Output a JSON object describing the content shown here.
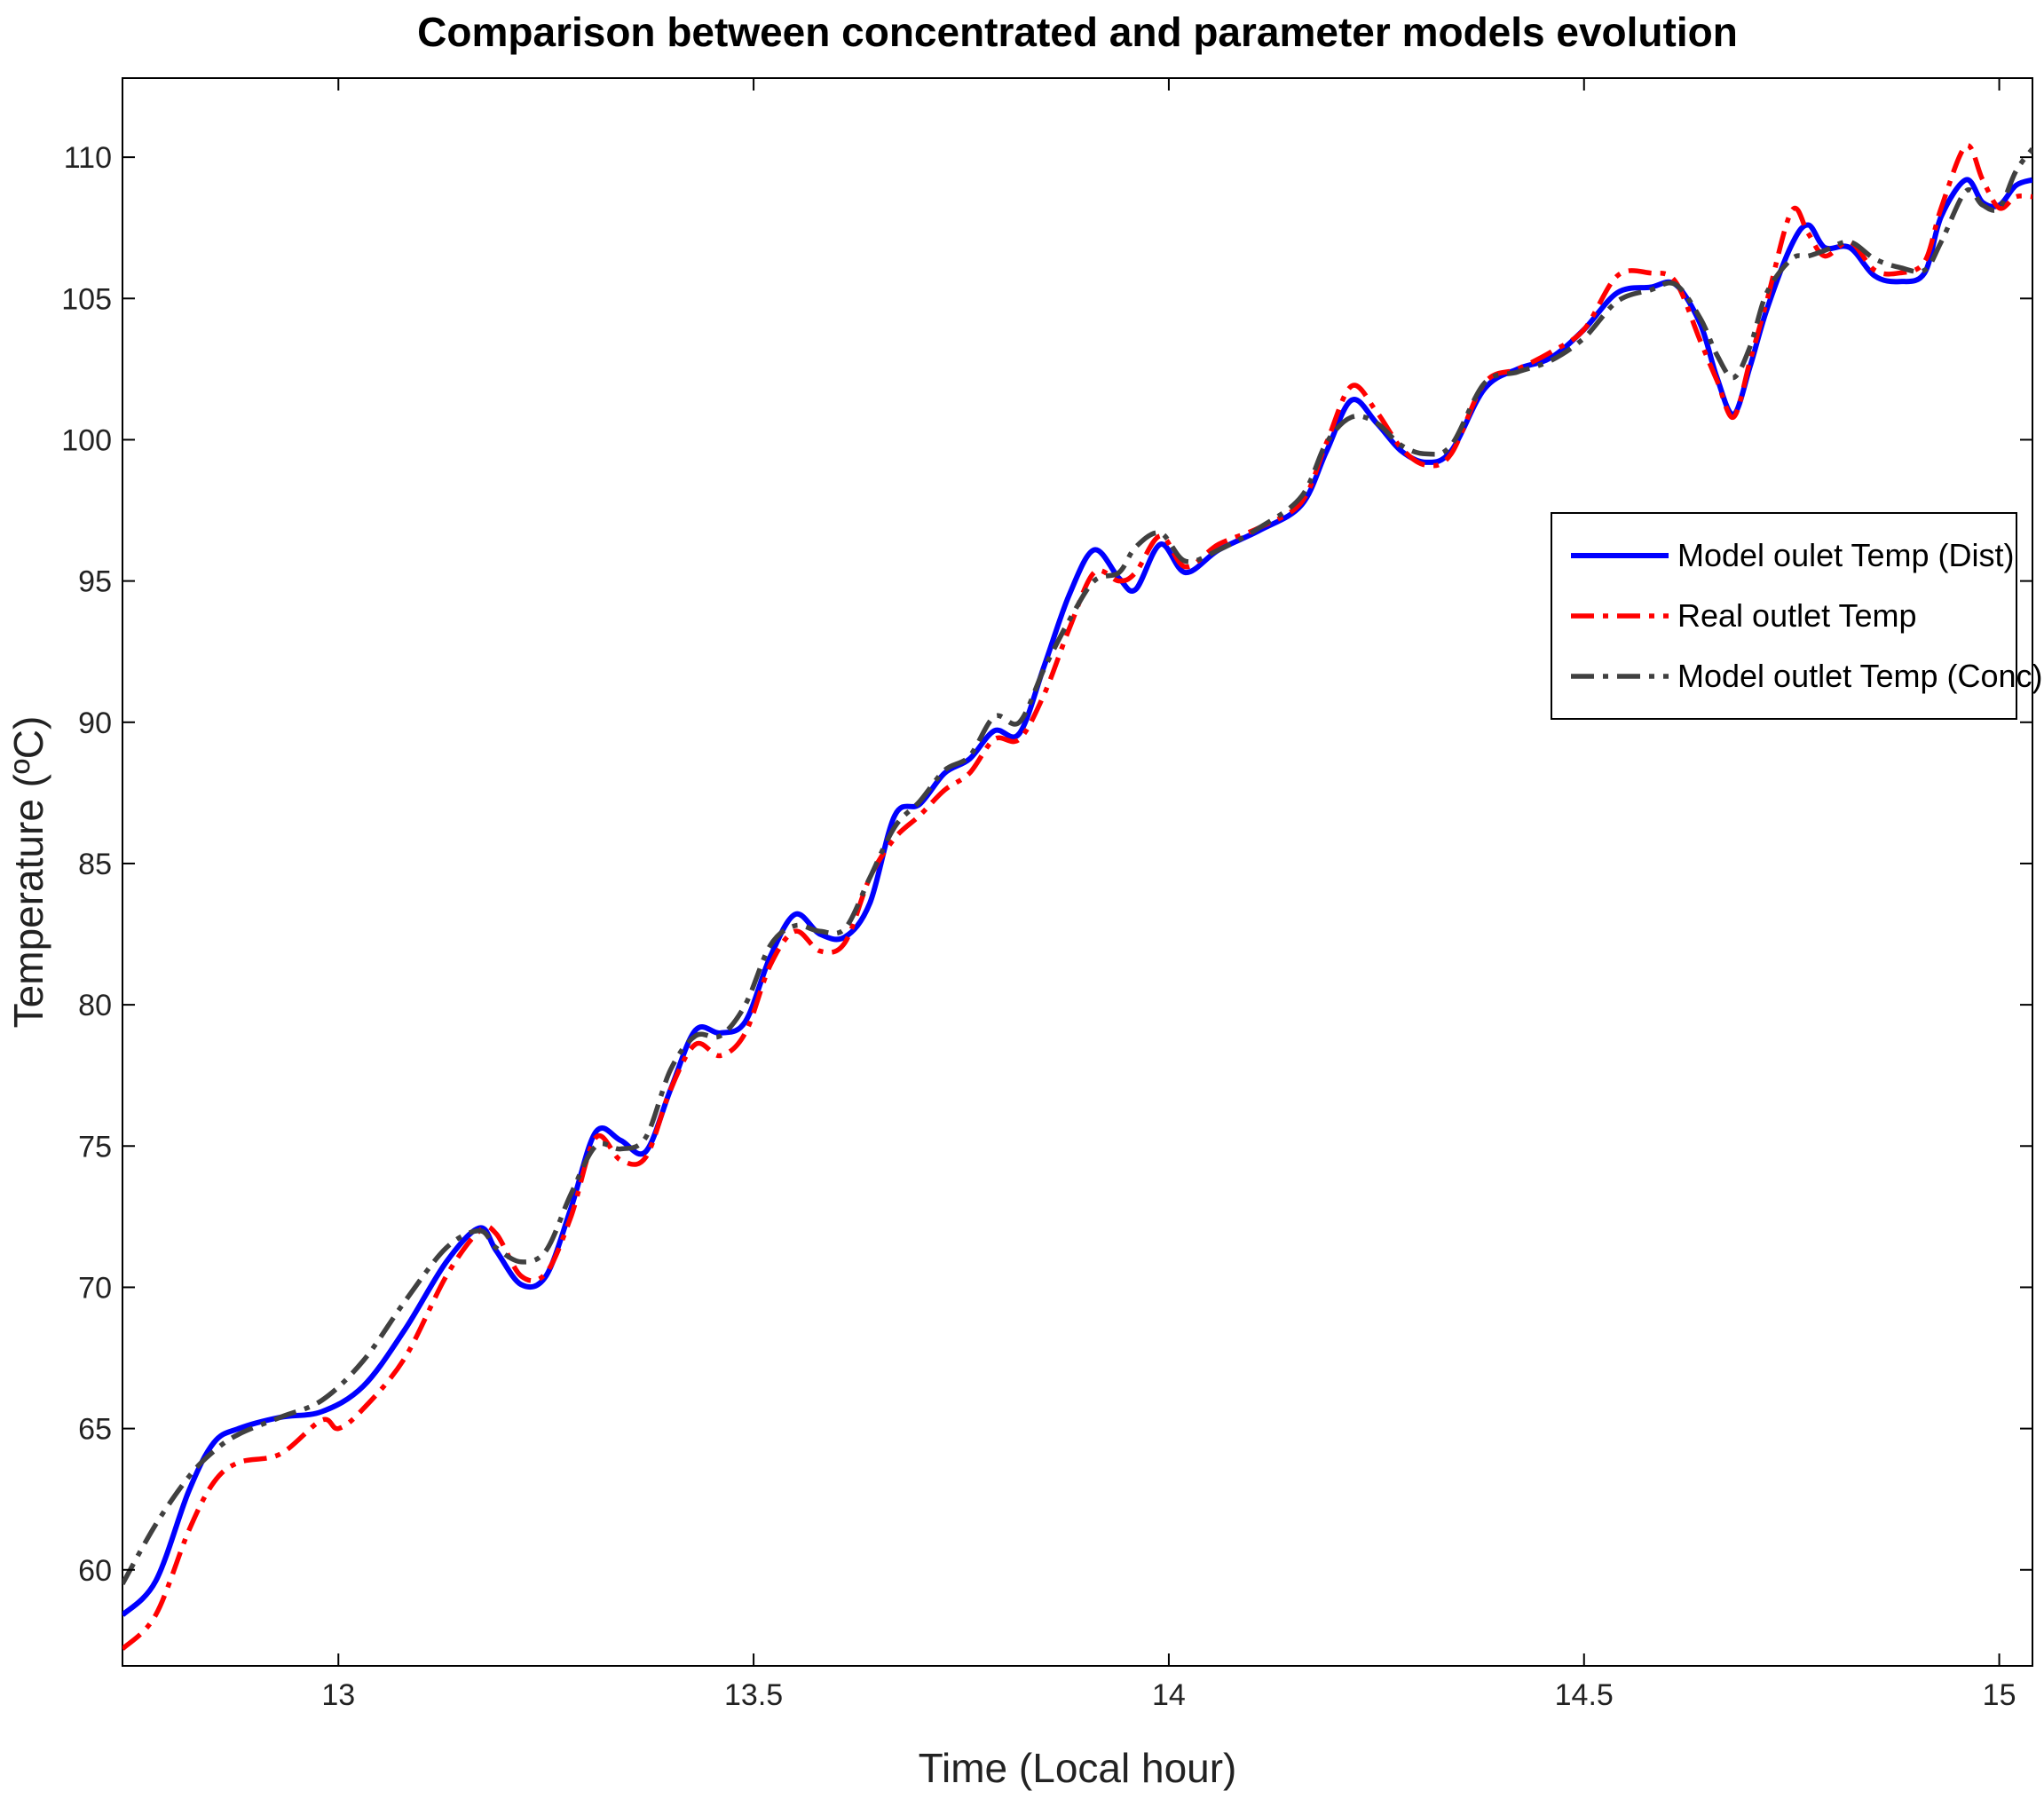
{
  "chart_data": {
    "type": "line",
    "title": "Comparison between concentrated and parameter models evolution",
    "xlabel": "Time (Local hour)",
    "ylabel": "Temperature (ºC)",
    "xlim": [
      12.74,
      15.04
    ],
    "ylim": [
      56.6,
      112.8
    ],
    "xticks": [
      13,
      13.5,
      14,
      14.5,
      15
    ],
    "xtick_labels": [
      "13",
      "13.5",
      "14",
      "14.5",
      "15"
    ],
    "yticks": [
      60,
      65,
      70,
      75,
      80,
      85,
      90,
      95,
      100,
      105,
      110
    ],
    "ytick_labels": [
      "60",
      "65",
      "70",
      "75",
      "80",
      "85",
      "90",
      "95",
      "100",
      "105",
      "110"
    ],
    "grid": false,
    "legend_position": "right",
    "series": [
      {
        "name": "Model oulet Temp (Dist)",
        "color": "#0000ff",
        "style": "solid",
        "x": [
          12.74,
          12.78,
          12.82,
          12.85,
          12.88,
          12.93,
          12.98,
          13.03,
          13.08,
          13.13,
          13.17,
          13.19,
          13.22,
          13.25,
          13.28,
          13.31,
          13.34,
          13.37,
          13.4,
          13.43,
          13.46,
          13.49,
          13.52,
          13.55,
          13.58,
          13.61,
          13.64,
          13.67,
          13.7,
          13.73,
          13.76,
          13.79,
          13.82,
          13.85,
          13.88,
          13.91,
          13.94,
          13.96,
          13.99,
          14.02,
          14.06,
          14.11,
          14.16,
          14.19,
          14.22,
          14.25,
          14.28,
          14.31,
          14.34,
          14.38,
          14.42,
          14.46,
          14.5,
          14.54,
          14.58,
          14.61,
          14.64,
          14.66,
          14.68,
          14.7,
          14.72,
          14.75,
          14.77,
          14.79,
          14.82,
          14.85,
          14.88,
          14.91,
          14.93,
          14.96,
          14.98,
          15.0,
          15.02,
          15.04
        ],
        "y": [
          58.4,
          59.6,
          62.8,
          64.5,
          65.0,
          65.4,
          65.6,
          66.5,
          68.5,
          70.9,
          72.1,
          71.3,
          70.1,
          70.4,
          72.8,
          75.5,
          75.2,
          74.8,
          77.0,
          79.1,
          79.0,
          79.4,
          81.7,
          83.2,
          82.5,
          82.4,
          83.6,
          86.7,
          87.1,
          88.2,
          88.7,
          89.7,
          89.6,
          92.0,
          94.5,
          96.1,
          95.1,
          94.7,
          96.3,
          95.3,
          96.1,
          96.8,
          97.7,
          99.6,
          101.4,
          100.6,
          99.6,
          99.2,
          99.6,
          101.8,
          102.5,
          102.9,
          103.9,
          105.2,
          105.4,
          105.5,
          104.1,
          102.2,
          100.9,
          102.6,
          104.6,
          106.9,
          107.6,
          106.8,
          106.8,
          105.8,
          105.6,
          105.9,
          107.9,
          109.2,
          108.4,
          108.3,
          109.0,
          109.2
        ]
      },
      {
        "name": "Real outlet Temp",
        "color": "#ff0000",
        "style": "dashdot",
        "x": [
          12.74,
          12.78,
          12.82,
          12.85,
          12.88,
          12.93,
          12.98,
          13.0,
          13.03,
          13.08,
          13.13,
          13.17,
          13.19,
          13.22,
          13.25,
          13.28,
          13.31,
          13.34,
          13.37,
          13.4,
          13.43,
          13.46,
          13.49,
          13.52,
          13.55,
          13.58,
          13.61,
          13.64,
          13.67,
          13.7,
          13.73,
          13.76,
          13.79,
          13.82,
          13.85,
          13.88,
          13.91,
          13.94,
          13.96,
          13.99,
          14.02,
          14.06,
          14.11,
          14.16,
          14.19,
          14.22,
          14.25,
          14.28,
          14.31,
          14.34,
          14.38,
          14.42,
          14.46,
          14.5,
          14.54,
          14.58,
          14.61,
          14.64,
          14.66,
          14.68,
          14.7,
          14.72,
          14.75,
          14.77,
          14.79,
          14.82,
          14.85,
          14.88,
          14.91,
          14.93,
          14.96,
          14.98,
          15.0,
          15.02,
          15.04
        ],
        "y": [
          57.2,
          58.4,
          61.4,
          63.1,
          63.8,
          64.1,
          65.3,
          65.0,
          65.7,
          67.5,
          70.4,
          72.0,
          71.9,
          70.4,
          70.5,
          72.5,
          75.3,
          74.5,
          74.6,
          77.0,
          78.6,
          78.2,
          79.0,
          81.4,
          82.6,
          81.9,
          82.2,
          84.5,
          85.9,
          86.7,
          87.6,
          88.2,
          89.4,
          89.4,
          91.0,
          93.3,
          95.3,
          95.0,
          95.3,
          96.6,
          95.5,
          96.3,
          96.9,
          97.8,
          99.9,
          101.9,
          101.0,
          99.7,
          99.1,
          99.5,
          102.0,
          102.5,
          103.1,
          103.9,
          105.8,
          105.9,
          105.6,
          103.5,
          102.1,
          100.8,
          102.8,
          104.9,
          108.1,
          107.3,
          106.5,
          107.0,
          106.0,
          105.9,
          106.3,
          108.2,
          110.4,
          109.2,
          108.2,
          108.6,
          108.6
        ]
      },
      {
        "name": "Model outlet Temp (Conc)",
        "color": "#404040",
        "style": "dashdot",
        "x": [
          12.74,
          12.78,
          12.82,
          12.85,
          12.88,
          12.93,
          12.98,
          13.03,
          13.08,
          13.13,
          13.17,
          13.19,
          13.22,
          13.25,
          13.28,
          13.31,
          13.34,
          13.37,
          13.4,
          13.43,
          13.46,
          13.49,
          13.52,
          13.55,
          13.58,
          13.61,
          13.64,
          13.67,
          13.7,
          13.73,
          13.76,
          13.79,
          13.82,
          13.85,
          13.88,
          13.91,
          13.94,
          13.96,
          13.99,
          14.02,
          14.06,
          14.11,
          14.16,
          14.19,
          14.22,
          14.25,
          14.28,
          14.31,
          14.34,
          14.38,
          14.42,
          14.46,
          14.5,
          14.54,
          14.58,
          14.61,
          14.64,
          14.66,
          14.68,
          14.7,
          14.72,
          14.75,
          14.77,
          14.79,
          14.82,
          14.85,
          14.88,
          14.91,
          14.93,
          14.96,
          14.98,
          15.0,
          15.02,
          15.04
        ],
        "y": [
          59.5,
          61.6,
          63.3,
          64.2,
          64.8,
          65.4,
          66.0,
          67.4,
          69.5,
          71.4,
          72.0,
          71.4,
          70.9,
          71.3,
          73.3,
          75.0,
          74.9,
          75.3,
          77.7,
          78.9,
          78.9,
          80.0,
          82.1,
          82.8,
          82.6,
          82.7,
          84.5,
          86.3,
          87.2,
          88.3,
          88.8,
          90.2,
          90.0,
          91.9,
          93.6,
          95.0,
          95.3,
          96.2,
          96.7,
          95.7,
          96.1,
          96.9,
          98.0,
          99.9,
          100.8,
          100.6,
          99.8,
          99.5,
          99.8,
          102.0,
          102.4,
          102.8,
          103.6,
          104.9,
          105.3,
          105.5,
          104.3,
          103.0,
          102.2,
          103.3,
          105.2,
          106.4,
          106.5,
          106.7,
          107.0,
          106.4,
          106.1,
          106.0,
          107.0,
          108.8,
          108.3,
          108.2,
          109.5,
          110.3
        ]
      }
    ]
  }
}
